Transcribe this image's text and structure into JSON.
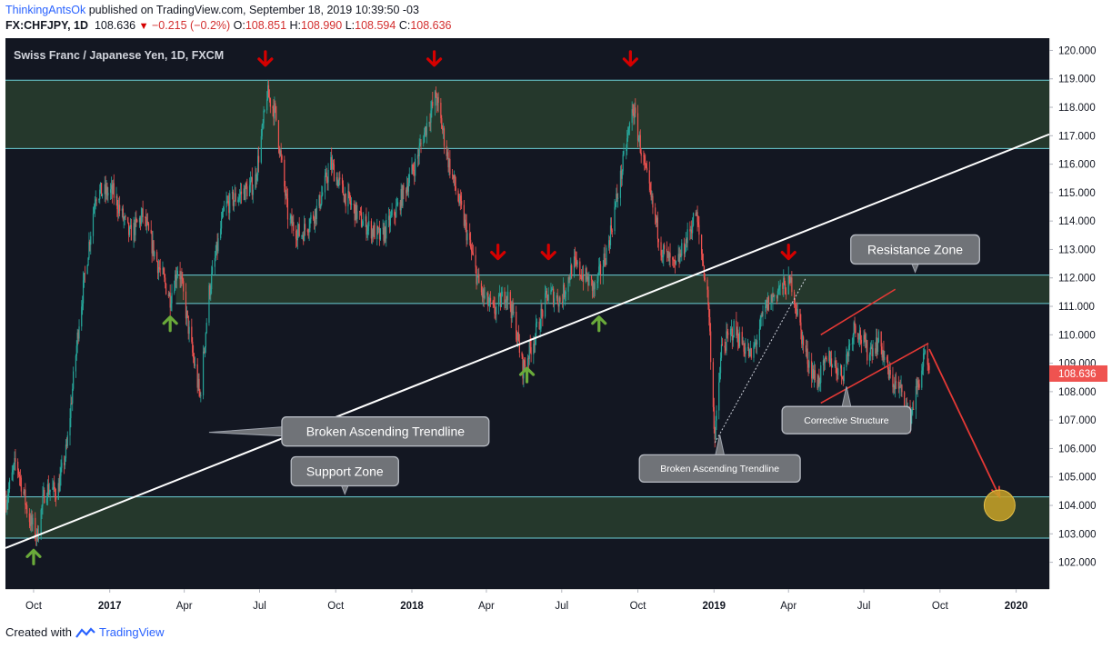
{
  "header": {
    "author": "ThinkingAntsOk",
    "published": "published on TradingView.com, September 18, 2019 10:39:50 -03",
    "symbol": "FX:CHFJPY, 1D",
    "last": "108.636",
    "change": "−0.215 (−0.2%)",
    "o_label": "O:",
    "o": "108.851",
    "h_label": "H:",
    "h": "108.990",
    "l_label": "L:",
    "l": "108.594",
    "c_label": "C:",
    "c": "108.636"
  },
  "footer": {
    "created_with": "Created with",
    "brand": "TradingView"
  },
  "colors": {
    "background": "#131722",
    "up": "#26a69a",
    "down": "#ef5350",
    "zone": "#25382c",
    "zone_line": "#6ccfd6",
    "trend": "#ffffff",
    "arrow_red": "#d50000",
    "arrow_green": "#6aaa3a",
    "target": "#c9a227"
  },
  "chart_data": {
    "type": "candlestick",
    "title": "Swiss Franc / Japanese Yen, 1D, FXCM",
    "price_label": "108.636",
    "x_ticks": [
      "Oct",
      "2017",
      "Apr",
      "Jul",
      "Oct",
      "2018",
      "Apr",
      "Jul",
      "Oct",
      "2019",
      "Apr",
      "Jul",
      "Oct",
      "2020"
    ],
    "x_tick_dates": [
      "2016-10-01",
      "2017-01-01",
      "2017-04-01",
      "2017-07-01",
      "2017-10-01",
      "2018-01-01",
      "2018-04-01",
      "2018-07-01",
      "2018-10-01",
      "2019-01-01",
      "2019-04-01",
      "2019-07-01",
      "2019-10-01",
      "2020-01-01"
    ],
    "x_range": [
      "2016-08-28",
      "2020-02-10"
    ],
    "y_ticks": [
      "102.000",
      "103.000",
      "104.000",
      "105.000",
      "106.000",
      "107.000",
      "108.000",
      "109.000",
      "110.000",
      "111.000",
      "112.000",
      "113.000",
      "114.000",
      "115.000",
      "116.000",
      "117.000",
      "118.000",
      "119.000",
      "120.000"
    ],
    "ylim": [
      101.06,
      120.43
    ],
    "price_path": [
      [
        "2016-08-29",
        104.2
      ],
      [
        "2016-09-10",
        105.6
      ],
      [
        "2016-09-25",
        103.6
      ],
      [
        "2016-10-05",
        102.9
      ],
      [
        "2016-10-15",
        104.6
      ],
      [
        "2016-10-30",
        104.5
      ],
      [
        "2016-11-10",
        106.0
      ],
      [
        "2016-11-25",
        110.5
      ],
      [
        "2016-12-15",
        115.0
      ],
      [
        "2017-01-05",
        115.0
      ],
      [
        "2017-01-25",
        113.5
      ],
      [
        "2017-02-10",
        114.2
      ],
      [
        "2017-03-01",
        112.4
      ],
      [
        "2017-03-15",
        111.3
      ],
      [
        "2017-03-25",
        112.5
      ],
      [
        "2017-04-10",
        109.5
      ],
      [
        "2017-04-20",
        107.8
      ],
      [
        "2017-05-01",
        111.5
      ],
      [
        "2017-05-20",
        114.5
      ],
      [
        "2017-06-10",
        115.0
      ],
      [
        "2017-06-25",
        115.3
      ],
      [
        "2017-07-05",
        117.3
      ],
      [
        "2017-07-10",
        118.5
      ],
      [
        "2017-07-20",
        117.8
      ],
      [
        "2017-08-05",
        114.0
      ],
      [
        "2017-08-20",
        113.5
      ],
      [
        "2017-09-10",
        114.5
      ],
      [
        "2017-09-25",
        116.0
      ],
      [
        "2017-10-10",
        115.0
      ],
      [
        "2017-11-01",
        114.0
      ],
      [
        "2017-11-25",
        113.4
      ],
      [
        "2017-12-15",
        114.5
      ],
      [
        "2018-01-05",
        116.0
      ],
      [
        "2018-01-20",
        117.5
      ],
      [
        "2018-01-30",
        118.4
      ],
      [
        "2018-02-15",
        116.0
      ],
      [
        "2018-03-05",
        114.0
      ],
      [
        "2018-03-25",
        111.5
      ],
      [
        "2018-04-10",
        110.8
      ],
      [
        "2018-04-25",
        111.5
      ],
      [
        "2018-05-05",
        110.5
      ],
      [
        "2018-05-15",
        108.8
      ],
      [
        "2018-05-30",
        110.0
      ],
      [
        "2018-06-15",
        111.5
      ],
      [
        "2018-06-30",
        111.2
      ],
      [
        "2018-07-15",
        112.5
      ],
      [
        "2018-07-30",
        112.0
      ],
      [
        "2018-08-10",
        111.6
      ],
      [
        "2018-08-25",
        113.0
      ],
      [
        "2018-09-10",
        115.5
      ],
      [
        "2018-09-25",
        118.0
      ],
      [
        "2018-10-15",
        115.0
      ],
      [
        "2018-10-30",
        113.0
      ],
      [
        "2018-11-15",
        112.3
      ],
      [
        "2018-12-01",
        113.5
      ],
      [
        "2018-12-10",
        114.3
      ],
      [
        "2018-12-25",
        111.2
      ],
      [
        "2019-01-02",
        106.3
      ],
      [
        "2019-01-10",
        109.5
      ],
      [
        "2019-01-25",
        110.2
      ],
      [
        "2019-02-15",
        109.2
      ],
      [
        "2019-03-05",
        111.0
      ],
      [
        "2019-03-20",
        111.6
      ],
      [
        "2019-04-05",
        111.8
      ],
      [
        "2019-04-20",
        109.5
      ],
      [
        "2019-05-05",
        108.3
      ],
      [
        "2019-05-20",
        109.2
      ],
      [
        "2019-06-05",
        108.6
      ],
      [
        "2019-06-20",
        110.4
      ],
      [
        "2019-07-05",
        109.4
      ],
      [
        "2019-07-20",
        109.8
      ],
      [
        "2019-08-01",
        108.5
      ],
      [
        "2019-08-15",
        108.0
      ],
      [
        "2019-08-25",
        107.0
      ],
      [
        "2019-09-05",
        108.3
      ],
      [
        "2019-09-12",
        109.2
      ],
      [
        "2019-09-18",
        108.636
      ]
    ],
    "zones": [
      {
        "from": 116.55,
        "to": 118.95
      },
      {
        "from": 111.1,
        "to": 112.1
      },
      {
        "from": 102.85,
        "to": 104.3
      }
    ],
    "zone_start_dates": [
      "2016-08-28",
      "2017-03-22",
      "2016-08-28"
    ],
    "trendline": {
      "from": [
        "2016-08-28",
        102.5
      ],
      "to": [
        "2020-02-10",
        117.05
      ]
    },
    "dotted_trendline": {
      "from": [
        "2019-01-02",
        106.2
      ],
      "to": [
        "2019-04-22",
        112.0
      ]
    },
    "channel_lines": [
      {
        "from": [
          "2019-05-10",
          110.0
        ],
        "to": [
          "2019-08-08",
          111.6
        ]
      },
      {
        "from": [
          "2019-05-10",
          107.6
        ],
        "to": [
          "2019-09-17",
          109.7
        ]
      }
    ],
    "projection": {
      "from": [
        "2019-09-18",
        109.5
      ],
      "to": [
        "2019-12-12",
        104.3
      ]
    },
    "target": [
      "2019-12-12",
      104.0
    ],
    "arrows_down": [
      [
        "2017-07-08",
        119.7
      ],
      [
        "2018-01-28",
        119.7
      ],
      [
        "2018-09-22",
        119.7
      ],
      [
        "2018-04-15",
        112.9
      ],
      [
        "2018-06-15",
        112.9
      ],
      [
        "2019-04-01",
        112.9
      ]
    ],
    "arrows_up": [
      [
        "2017-03-15",
        110.4
      ],
      [
        "2018-05-20",
        108.6
      ],
      [
        "2018-08-15",
        110.4
      ],
      [
        "2016-10-01",
        102.2
      ]
    ],
    "annotations": [
      {
        "text": "Resistance Zone",
        "at": [
          "2019-09-01",
          113.0
        ]
      },
      {
        "text": "Broken Ascending Trendline",
        "at": [
          "2017-11-30",
          106.6
        ]
      },
      {
        "text": "Support Zone",
        "at": [
          "2017-10-12",
          105.2
        ]
      },
      {
        "text": "Broken Ascending Trendline",
        "at": [
          "2019-01-08",
          105.3
        ]
      },
      {
        "text": "Corrective Structure",
        "at": [
          "2019-06-10",
          107.0
        ]
      }
    ]
  }
}
